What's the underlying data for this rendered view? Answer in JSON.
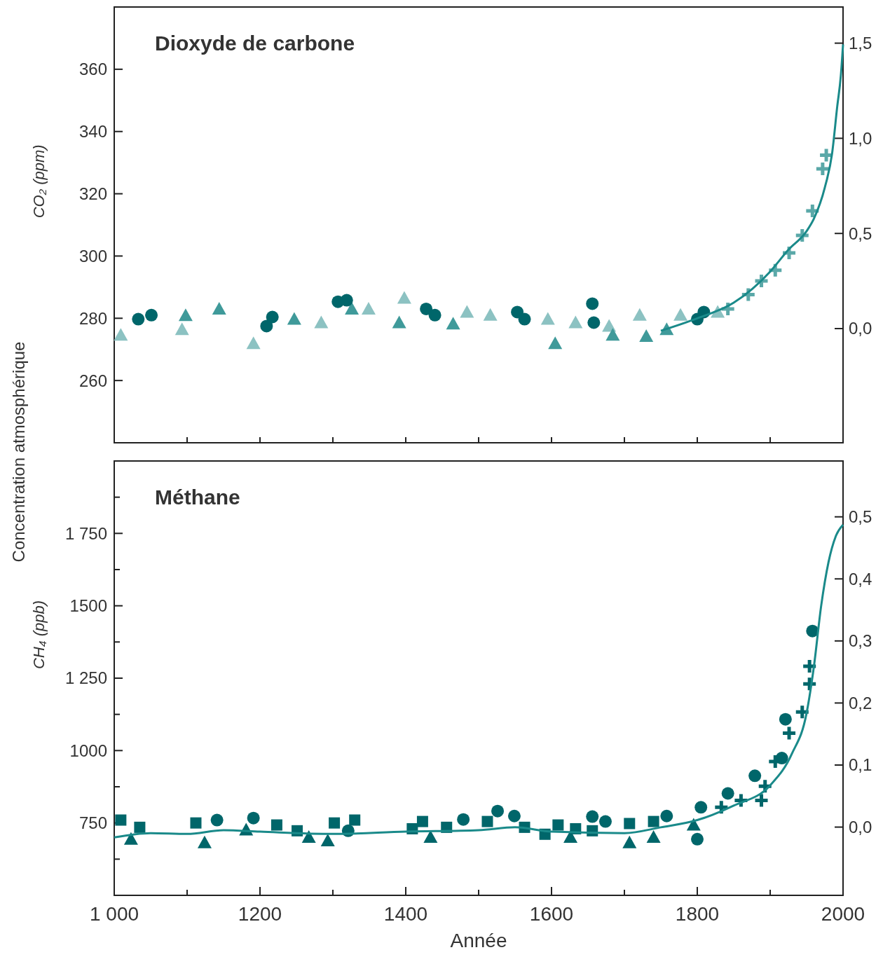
{
  "chart_data": [
    {
      "type": "scatter",
      "title": "Dioxyde de carbone",
      "ylabel": "CO₂ (ppm)",
      "annotations": [
        "Concentration atmosphérique"
      ],
      "xlim": [
        1000,
        2000
      ],
      "xticks": [
        {
          "value": 1000,
          "label": null
        },
        {
          "value": 1100,
          "label": null
        },
        {
          "value": 1200,
          "label": null
        },
        {
          "value": 1300,
          "label": null
        },
        {
          "value": 1400,
          "label": null
        },
        {
          "value": 1500,
          "label": null
        },
        {
          "value": 1600,
          "label": null
        },
        {
          "value": 1700,
          "label": null
        },
        {
          "value": 1800,
          "label": null
        },
        {
          "value": 1900,
          "label": null
        },
        {
          "value": 2000,
          "label": null
        }
      ],
      "ylim": [
        240,
        380
      ],
      "yticks": [
        260,
        280,
        300,
        320,
        340,
        360
      ],
      "y2lim": [
        -0.6,
        1.69
      ],
      "y2ticks": [
        {
          "value": 0,
          "label": "0,0"
        },
        {
          "value": 0.5,
          "label": "0,5"
        },
        {
          "value": 1,
          "label": "1,0"
        },
        {
          "value": 1.5,
          "label": "1,5"
        }
      ],
      "tick_labels": "y",
      "series": [
        {
          "marker": "triangle",
          "color": "#8cc2c2",
          "x": [
            1009,
            1093,
            1191,
            1284,
            1349,
            1398,
            1484,
            1516,
            1595,
            1633,
            1679,
            1721,
            1777,
            1828
          ],
          "values": [
            274.6,
            276.4,
            271.9,
            278.6,
            283,
            286.5,
            282,
            281,
            279.7,
            278.6,
            277.5,
            281,
            281,
            282
          ]
        },
        {
          "marker": "triangle",
          "color": "#3f9a9a",
          "x": [
            1098,
            1144,
            1247,
            1326,
            1391,
            1465,
            1605,
            1684,
            1730,
            1758
          ],
          "values": [
            280.9,
            283,
            279.7,
            283,
            278.6,
            278.2,
            271.9,
            274.6,
            274.2,
            276.4
          ]
        },
        {
          "marker": "cross",
          "color": "#5aa8a8",
          "x": [
            1842,
            1870,
            1888,
            1907,
            1926,
            1944,
            1958,
            1972,
            1977
          ],
          "values": [
            283,
            287.6,
            292,
            295.4,
            301,
            306.6,
            314.5,
            328,
            332.4
          ]
        },
        {
          "marker": "circle",
          "color": "#00666a",
          "x": [
            1033,
            1051,
            1209,
            1217,
            1307,
            1319,
            1428,
            1440,
            1553,
            1563,
            1656,
            1658,
            1800,
            1809
          ],
          "values": [
            279.7,
            281,
            277.5,
            280.4,
            285.3,
            285.8,
            283,
            281,
            282,
            279.7,
            284.7,
            278.6,
            279.7,
            282
          ]
        },
        {
          "type": "line",
          "color": "#1a8a8a",
          "x": [
            1750,
            1800,
            1850,
            1900,
            1925,
            1950,
            1960,
            1975,
            1985,
            1992,
            1997,
            2000
          ],
          "values": [
            276,
            280,
            285,
            295,
            302,
            308,
            312,
            322,
            333,
            348,
            358,
            368
          ]
        }
      ]
    },
    {
      "type": "scatter",
      "title": "Méthane",
      "ylabel": "CH₄ (ppb)",
      "xlabel": "Année",
      "xlim": [
        1000,
        2000
      ],
      "xticks": [
        {
          "value": 1000,
          "label": "1 000"
        },
        {
          "value": 1100,
          "label": null
        },
        1200,
        {
          "value": 1300,
          "label": null
        },
        1400,
        {
          "value": 1500,
          "label": null
        },
        1600,
        {
          "value": 1700,
          "label": null
        },
        1800,
        {
          "value": 1900,
          "label": null
        },
        2000
      ],
      "ylim": [
        500,
        2000
      ],
      "yticks": [
        {
          "value": 625,
          "label": null
        },
        {
          "value": 750,
          "label": "750"
        },
        {
          "value": 875,
          "label": null
        },
        {
          "value": 1000,
          "label": "1000"
        },
        {
          "value": 1125,
          "label": null
        },
        {
          "value": 1250,
          "label": "1 250"
        },
        {
          "value": 1375,
          "label": null
        },
        {
          "value": 1500,
          "label": "1500"
        },
        {
          "value": 1625,
          "label": null
        },
        {
          "value": 1750,
          "label": "1 750"
        },
        {
          "value": 1875,
          "label": null
        }
      ],
      "y2lim": [
        -0.11,
        0.59
      ],
      "y2ticks": [
        {
          "value": 0,
          "label": "0,0"
        },
        {
          "value": 0.1,
          "label": "0,1"
        },
        {
          "value": 0.2,
          "label": "0,2"
        },
        {
          "value": 0.3,
          "label": "0,3"
        },
        {
          "value": 0.4,
          "label": "0,4"
        },
        {
          "value": 0.5,
          "label": "0,5"
        }
      ],
      "series": [
        {
          "marker": "triangle",
          "color": "#00666a",
          "x": [
            1023,
            1124,
            1181,
            1267,
            1293,
            1434,
            1626,
            1707,
            1740,
            1795
          ],
          "values": [
            694,
            682,
            726,
            701,
            689,
            701,
            701,
            682,
            701,
            743
          ]
        },
        {
          "marker": "square",
          "color": "#00666a",
          "x": [
            1009,
            1035,
            1112,
            1223,
            1251,
            1302,
            1330,
            1409,
            1423,
            1456,
            1512,
            1563,
            1591,
            1609,
            1633,
            1656,
            1707,
            1740
          ],
          "values": [
            760,
            735,
            750,
            743,
            723,
            750,
            760,
            730,
            755,
            735,
            755,
            735,
            711,
            743,
            730,
            723,
            748,
            755
          ]
        },
        {
          "marker": "circle",
          "color": "#00666a",
          "x": [
            1141,
            1191,
            1321,
            1479,
            1526,
            1549,
            1656,
            1674,
            1758,
            1800,
            1805,
            1842,
            1879,
            1916,
            1921,
            1958
          ],
          "values": [
            760,
            767,
            723,
            762,
            791,
            774,
            772,
            755,
            774,
            694,
            804,
            852,
            913,
            974,
            1108,
            1413
          ]
        },
        {
          "marker": "cross",
          "color": "#00666a",
          "x": [
            1833,
            1860,
            1888,
            1893,
            1907,
            1926,
            1944,
            1954,
            1954
          ],
          "values": [
            804,
            828,
            828,
            877,
            962,
            1060,
            1133,
            1291,
            1230
          ]
        },
        {
          "type": "line",
          "color": "#1a8a8a",
          "x": [
            1000,
            1050,
            1100,
            1150,
            1200,
            1300,
            1400,
            1500,
            1550,
            1600,
            1700,
            1750,
            1800,
            1850,
            1900,
            1930,
            1950,
            1960,
            1970,
            1980,
            1990,
            2000
          ],
          "values": [
            700,
            715,
            712,
            725,
            720,
            712,
            720,
            725,
            735,
            720,
            715,
            735,
            760,
            810,
            880,
            990,
            1130,
            1290,
            1500,
            1650,
            1740,
            1780
          ]
        }
      ]
    }
  ]
}
